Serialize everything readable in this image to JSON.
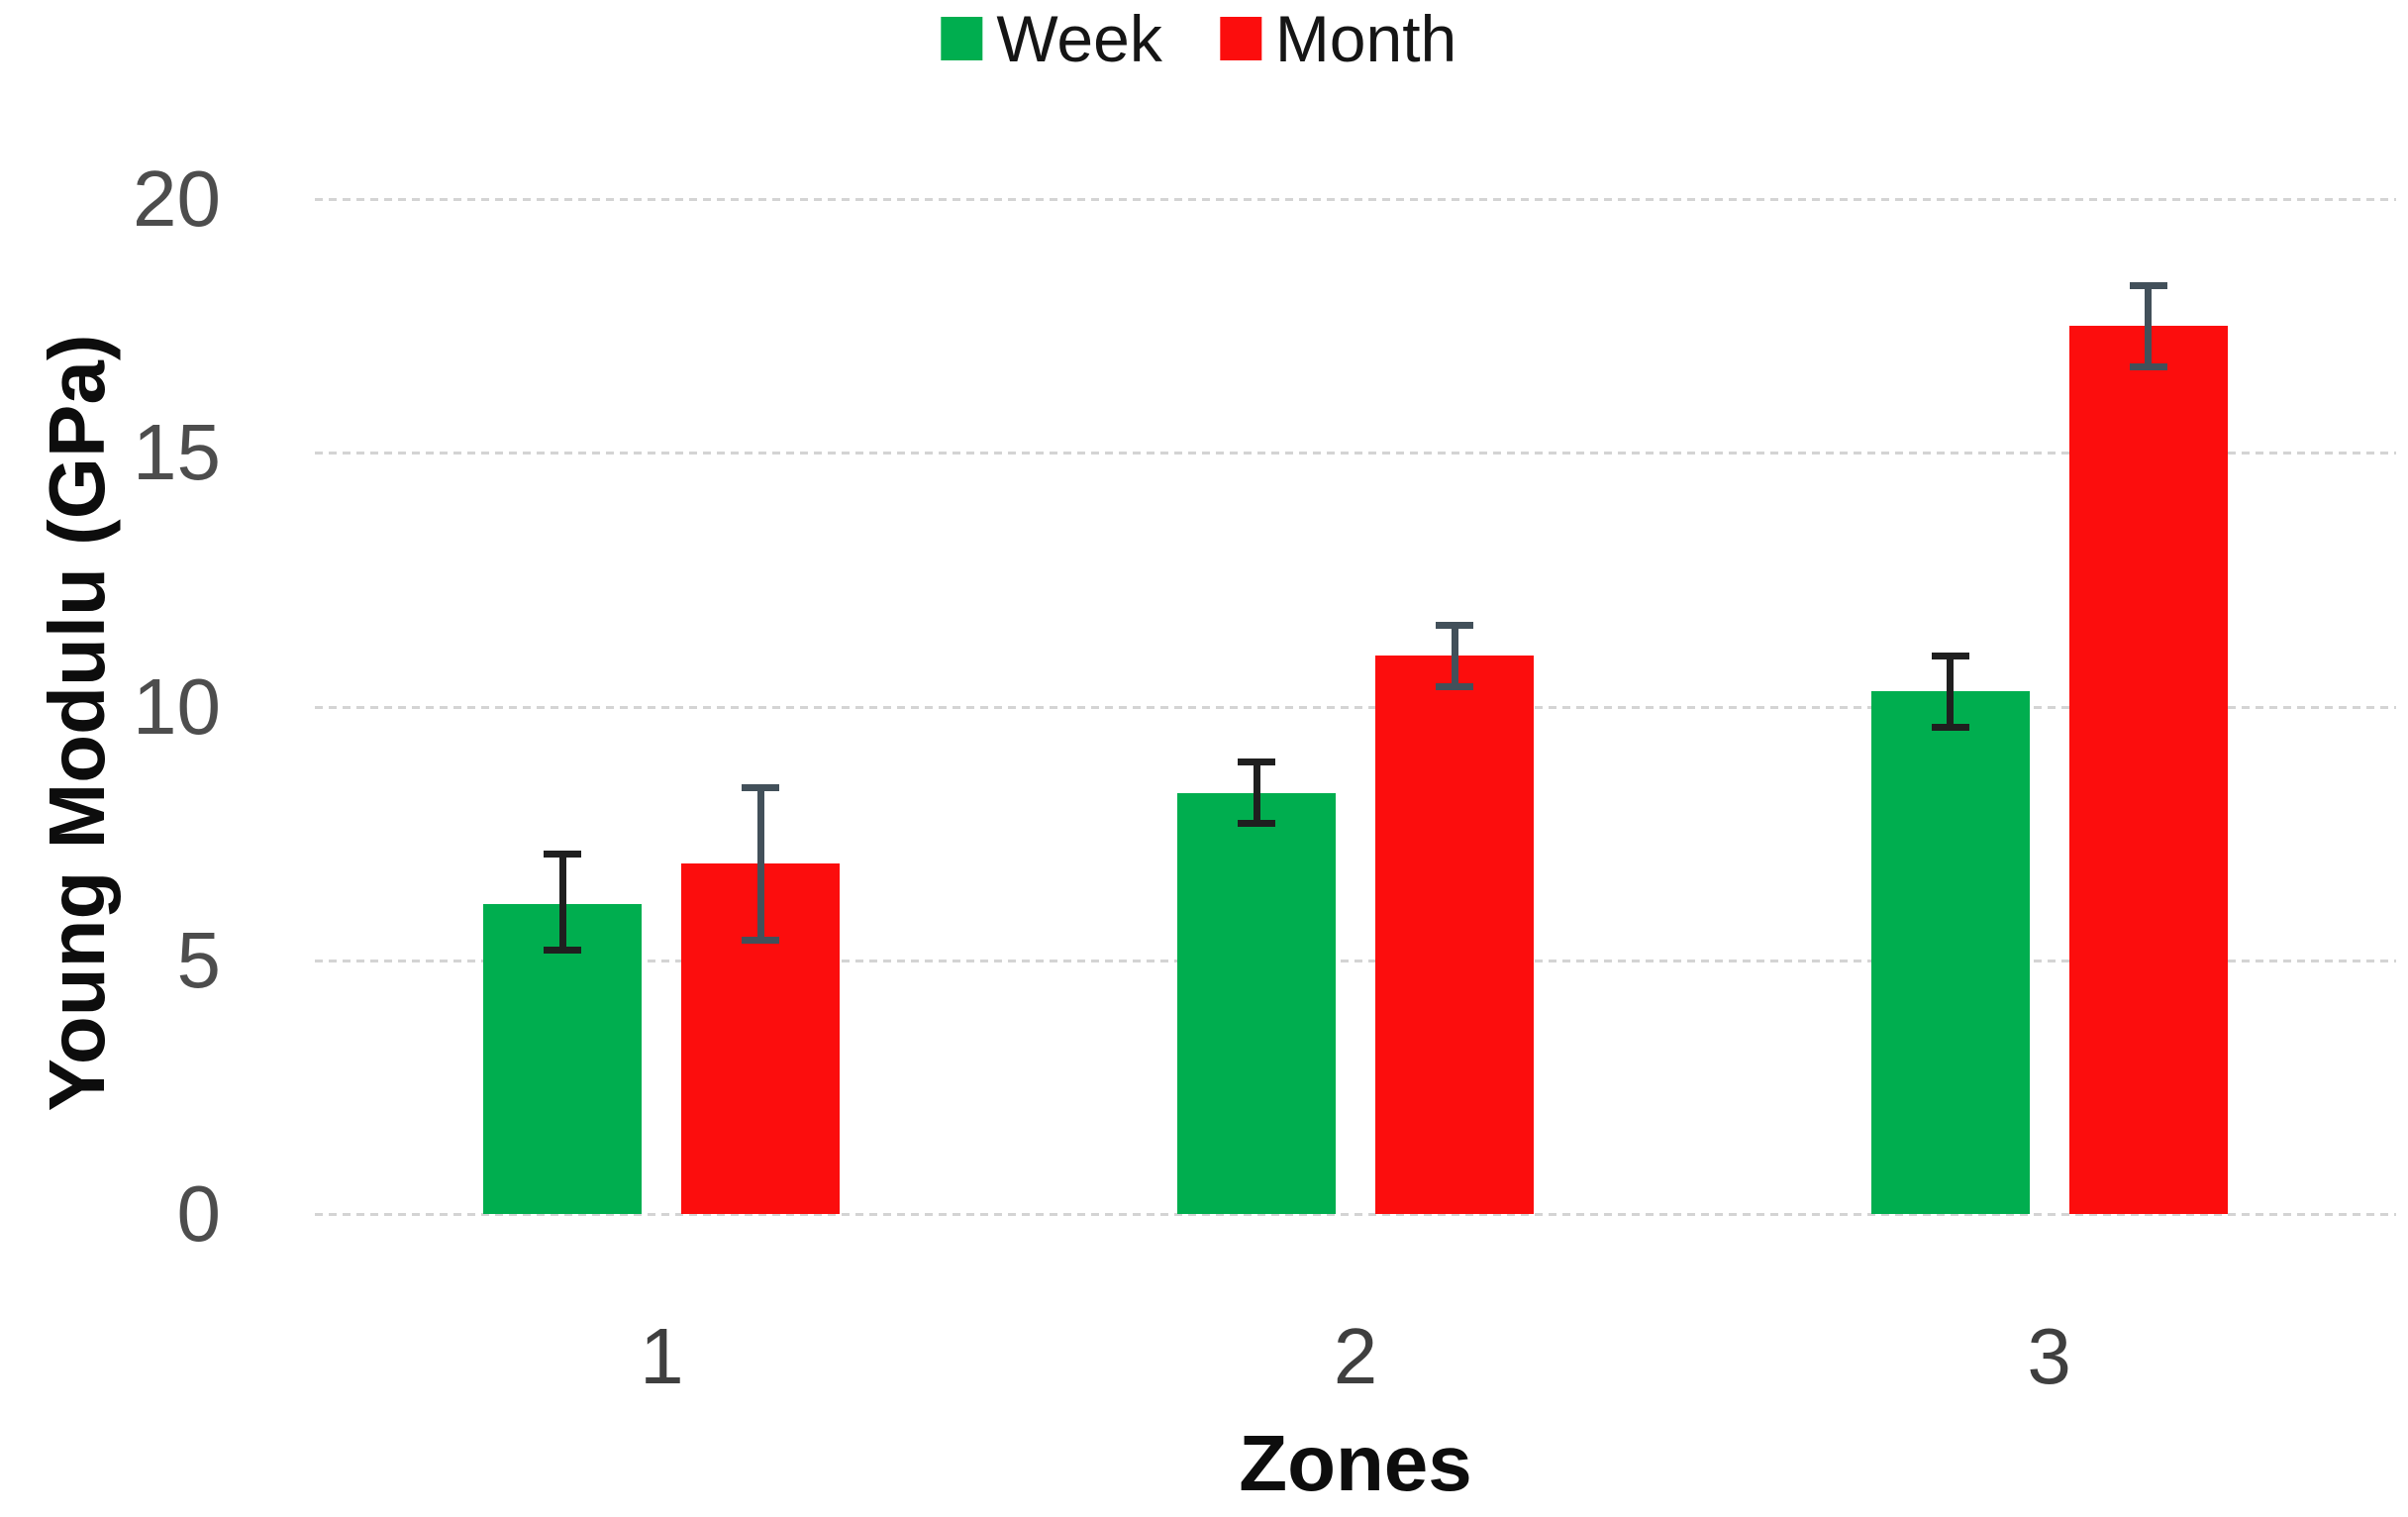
{
  "axes": {
    "y_ticks": [
      0,
      5,
      10,
      15,
      20
    ],
    "x_categories": [
      "1",
      "2",
      "3"
    ]
  },
  "chart_data": {
    "type": "bar",
    "title": "",
    "xlabel": "Zones",
    "ylabel": "Young Modulu (GPa)",
    "categories": [
      "1",
      "2",
      "3"
    ],
    "ylim": [
      0,
      20
    ],
    "grid": true,
    "legend_position": "top-center",
    "series": [
      {
        "name": "Week",
        "color": "#00AE4F",
        "error_color": "#1f1f1f",
        "values": [
          6.1,
          8.3,
          10.3
        ],
        "error_low": [
          5.2,
          7.7,
          9.6
        ],
        "error_high": [
          7.1,
          8.9,
          11.0
        ]
      },
      {
        "name": "Month",
        "color": "#FC0D0D",
        "error_color": "#42505a",
        "values": [
          6.9,
          11.0,
          17.5
        ],
        "error_low": [
          5.4,
          10.4,
          16.7
        ],
        "error_high": [
          8.4,
          11.6,
          18.3
        ]
      }
    ]
  },
  "colors": {
    "gridline": "#d4d4d4",
    "tick_label": "#4d4d4d",
    "category_label": "#3f3f3f",
    "axis_title": "#0d0d0d"
  }
}
